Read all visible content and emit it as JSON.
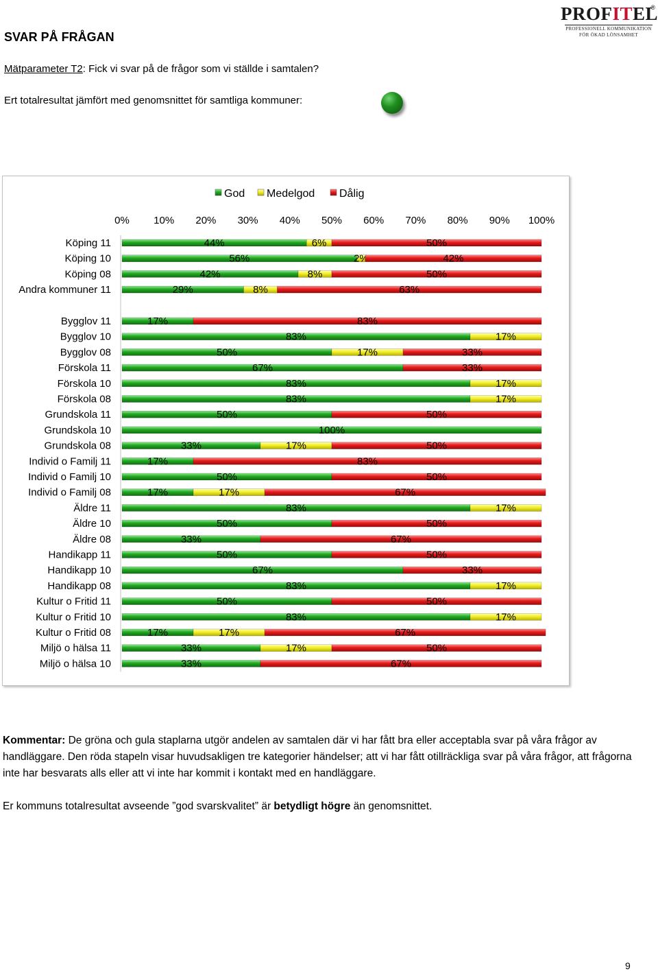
{
  "header": {
    "title": "SVAR PÅ FRÅGAN",
    "metric_label": "Mätparameter T2",
    "metric_text": ": Fick vi svar på de frågor som vi ställde i samtalen?",
    "total_text": "Ert totalresultat jämfört med genomsnittet för samtliga kommuner:",
    "status_color": "#1f8f1f"
  },
  "logo": {
    "word_a": "PROF",
    "word_b": "IT",
    "word_c": "EL",
    "reg": "®",
    "tagline1": "PROFESSIONELL KOMMUNIKATION",
    "tagline2": "FÖR ÖKAD LÖNSAMHET"
  },
  "colors": {
    "god": "#22a822",
    "medelgod": "#f2ef2a",
    "dalig": "#e51a1a"
  },
  "chart_data": {
    "type": "bar",
    "orientation": "horizontal-stacked-100",
    "xlim": [
      0,
      100
    ],
    "ticks": [
      "0%",
      "10%",
      "20%",
      "30%",
      "40%",
      "50%",
      "60%",
      "70%",
      "80%",
      "90%",
      "100%"
    ],
    "legend_position": "top",
    "series": [
      {
        "name": "God"
      },
      {
        "name": "Medelgod"
      },
      {
        "name": "Dålig"
      }
    ],
    "groups": [
      {
        "rows": [
          {
            "label": "Köping 11",
            "values": [
              44,
              6,
              50
            ],
            "texts": [
              "44%",
              "6%",
              "50%"
            ]
          },
          {
            "label": "Köping 10",
            "values": [
              56,
              2,
              42
            ],
            "texts": [
              "56%",
              "2%",
              "42%"
            ]
          },
          {
            "label": "Köping 08",
            "values": [
              42,
              8,
              50
            ],
            "texts": [
              "42%",
              "8%",
              "50%"
            ]
          },
          {
            "label": "Andra kommuner 11",
            "values": [
              29,
              8,
              63
            ],
            "texts": [
              "29%",
              "8%",
              "63%"
            ]
          }
        ]
      },
      {
        "rows": [
          {
            "label": "Bygglov 11",
            "values": [
              17,
              0,
              83
            ],
            "texts": [
              "17%",
              "",
              "83%"
            ]
          },
          {
            "label": "Bygglov 10",
            "values": [
              83,
              17,
              0
            ],
            "texts": [
              "83%",
              "17%",
              ""
            ]
          },
          {
            "label": "Bygglov 08",
            "values": [
              50,
              17,
              33
            ],
            "texts": [
              "50%",
              "17%",
              "33%"
            ]
          },
          {
            "label": "Förskola 11",
            "values": [
              67,
              0,
              33
            ],
            "texts": [
              "67%",
              "",
              "33%"
            ]
          },
          {
            "label": "Förskola 10",
            "values": [
              83,
              17,
              0
            ],
            "texts": [
              "83%",
              "17%",
              ""
            ]
          },
          {
            "label": "Förskola 08",
            "values": [
              83,
              17,
              0
            ],
            "texts": [
              "83%",
              "17%",
              ""
            ]
          },
          {
            "label": "Grundskola 11",
            "values": [
              50,
              0,
              50
            ],
            "texts": [
              "50%",
              "",
              "50%"
            ]
          },
          {
            "label": "Grundskola 10",
            "values": [
              100,
              0,
              0
            ],
            "texts": [
              "100%",
              "",
              ""
            ]
          },
          {
            "label": "Grundskola 08",
            "values": [
              33,
              17,
              50
            ],
            "texts": [
              "33%",
              "17%",
              "50%"
            ]
          },
          {
            "label": "Individ o Familj 11",
            "values": [
              17,
              0,
              83
            ],
            "texts": [
              "17%",
              "",
              "83%"
            ]
          },
          {
            "label": "Individ o Familj 10",
            "values": [
              50,
              0,
              50
            ],
            "texts": [
              "50%",
              "",
              "50%"
            ]
          },
          {
            "label": "Individ o Familj 08",
            "values": [
              17,
              17,
              67
            ],
            "texts": [
              "17%",
              "17%",
              "67%"
            ]
          },
          {
            "label": "Äldre 11",
            "values": [
              83,
              17,
              0
            ],
            "texts": [
              "83%",
              "17%",
              ""
            ]
          },
          {
            "label": "Äldre 10",
            "values": [
              50,
              0,
              50
            ],
            "texts": [
              "50%",
              "",
              "50%"
            ]
          },
          {
            "label": "Äldre 08",
            "values": [
              33,
              0,
              67
            ],
            "texts": [
              "33%",
              "",
              "67%"
            ]
          },
          {
            "label": "Handikapp 11",
            "values": [
              50,
              0,
              50
            ],
            "texts": [
              "50%",
              "",
              "50%"
            ]
          },
          {
            "label": "Handikapp 10",
            "values": [
              67,
              0,
              33
            ],
            "texts": [
              "67%",
              "",
              "33%"
            ]
          },
          {
            "label": "Handikapp 08",
            "values": [
              83,
              17,
              0
            ],
            "texts": [
              "83%",
              "17%",
              ""
            ]
          },
          {
            "label": "Kultur o Fritid 11",
            "values": [
              50,
              0,
              50
            ],
            "texts": [
              "50%",
              "",
              "50%"
            ]
          },
          {
            "label": "Kultur o Fritid 10",
            "values": [
              83,
              17,
              0
            ],
            "texts": [
              "83%",
              "17%",
              ""
            ]
          },
          {
            "label": "Kultur o Fritid 08",
            "values": [
              17,
              17,
              67
            ],
            "texts": [
              "17%",
              "17%",
              "67%"
            ]
          },
          {
            "label": "Miljö o hälsa 11",
            "values": [
              33,
              17,
              50
            ],
            "texts": [
              "33%",
              "17%",
              "50%"
            ]
          },
          {
            "label": "Miljö o hälsa 10",
            "values": [
              33,
              0,
              67
            ],
            "texts": [
              "33%",
              "",
              "67%"
            ]
          }
        ]
      }
    ]
  },
  "comment": {
    "label": "Kommentar:",
    "text": " De gröna och gula staplarna utgör andelen av samtalen där vi har fått bra eller acceptabla svar på våra frågor av handläggare. Den röda stapeln visar huvudsakligen tre kategorier händelser; att vi har fått otillräckliga svar på våra frågor, att frågorna inte har besvarats alls eller att vi inte har kommit i kontakt med en handläggare."
  },
  "summary": {
    "before": "Er kommuns totalresultat avseende ”god svarskvalitet” är ",
    "bold": "betydligt högre",
    "after": " än genomsnittet."
  },
  "page_number": "9"
}
